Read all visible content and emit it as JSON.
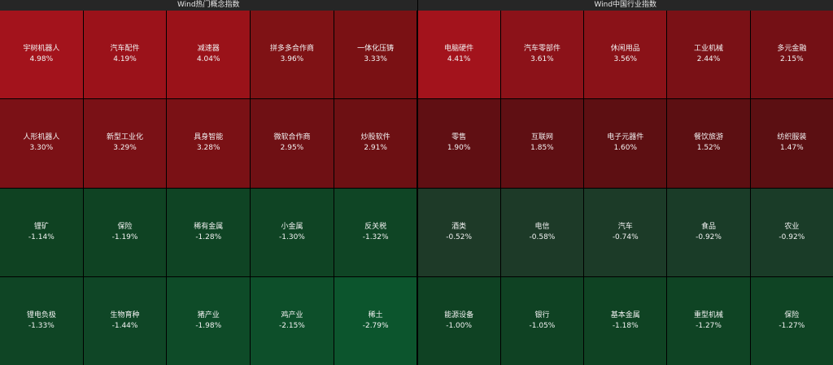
{
  "panels": [
    {
      "title": "Wind热门概念指数",
      "tiles": [
        {
          "name": "宇树机器人",
          "change": "4.98%",
          "color": "#a3131c"
        },
        {
          "name": "汽车配件",
          "change": "4.19%",
          "color": "#9b121a"
        },
        {
          "name": "减速器",
          "change": "4.04%",
          "color": "#9a1219"
        },
        {
          "name": "拼多多合作商",
          "change": "3.96%",
          "color": "#7f1215"
        },
        {
          "name": "一体化压铸",
          "change": "3.33%",
          "color": "#7a1114"
        },
        {
          "name": "人形机器人",
          "change": "3.30%",
          "color": "#7b1116"
        },
        {
          "name": "新型工业化",
          "change": "3.29%",
          "color": "#7a1116"
        },
        {
          "name": "具身智能",
          "change": "3.28%",
          "color": "#7a1115"
        },
        {
          "name": "微软合作商",
          "change": "2.95%",
          "color": "#6f1014"
        },
        {
          "name": "炒股软件",
          "change": "2.91%",
          "color": "#6d1013"
        },
        {
          "name": "锂矿",
          "change": "-1.14%",
          "color": "#0f4222"
        },
        {
          "name": "保险",
          "change": "-1.19%",
          "color": "#0f4323"
        },
        {
          "name": "稀有金属",
          "change": "-1.28%",
          "color": "#0f4424"
        },
        {
          "name": "小金属",
          "change": "-1.30%",
          "color": "#0f4424"
        },
        {
          "name": "反关税",
          "change": "-1.32%",
          "color": "#0f4525"
        },
        {
          "name": "锂电负极",
          "change": "-1.33%",
          "color": "#0f4525"
        },
        {
          "name": "生物育种",
          "change": "-1.44%",
          "color": "#0f4626"
        },
        {
          "name": "猪产业",
          "change": "-1.98%",
          "color": "#0e4b28"
        },
        {
          "name": "鸡产业",
          "change": "-2.15%",
          "color": "#0d4f2a"
        },
        {
          "name": "稀土",
          "change": "-2.79%",
          "color": "#0c552d"
        }
      ]
    },
    {
      "title": "Wind中国行业指数",
      "tiles": [
        {
          "name": "电脑硬件",
          "change": "4.41%",
          "color": "#a3131c"
        },
        {
          "name": "汽车零部件",
          "change": "3.61%",
          "color": "#8c1219"
        },
        {
          "name": "休闲用品",
          "change": "3.56%",
          "color": "#8a1218"
        },
        {
          "name": "工业机械",
          "change": "2.44%",
          "color": "#7a1116"
        },
        {
          "name": "多元金融",
          "change": "2.15%",
          "color": "#741015"
        },
        {
          "name": "零售",
          "change": "1.90%",
          "color": "#600f13"
        },
        {
          "name": "互联网",
          "change": "1.85%",
          "color": "#5f0f13"
        },
        {
          "name": "电子元器件",
          "change": "1.60%",
          "color": "#5d0f12"
        },
        {
          "name": "餐饮旅游",
          "change": "1.52%",
          "color": "#5c0f12"
        },
        {
          "name": "纺织服装",
          "change": "1.47%",
          "color": "#5b0f12"
        },
        {
          "name": "酒类",
          "change": "-0.52%",
          "color": "#1e3a28"
        },
        {
          "name": "电信",
          "change": "-0.58%",
          "color": "#1d3a28"
        },
        {
          "name": "汽车",
          "change": "-0.74%",
          "color": "#1c3b28"
        },
        {
          "name": "食品",
          "change": "-0.92%",
          "color": "#1a3c28"
        },
        {
          "name": "农业",
          "change": "-0.92%",
          "color": "#1a3c28"
        },
        {
          "name": "能源设备",
          "change": "-1.00%",
          "color": "#0f4223"
        },
        {
          "name": "银行",
          "change": "-1.05%",
          "color": "#0f4223"
        },
        {
          "name": "基本金属",
          "change": "-1.18%",
          "color": "#0f4323"
        },
        {
          "name": "重型机械",
          "change": "-1.27%",
          "color": "#0f4424"
        },
        {
          "name": "保险",
          "change": "-1.27%",
          "color": "#0f4424"
        }
      ]
    }
  ]
}
